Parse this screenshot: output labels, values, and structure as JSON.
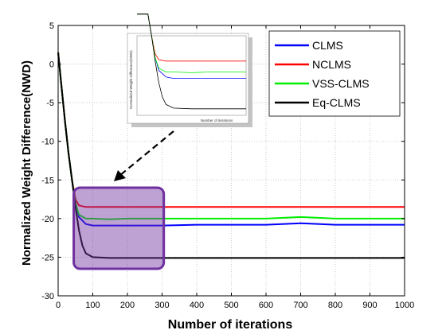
{
  "chart_data": {
    "type": "line",
    "xlabel": "Number of iterations",
    "ylabel": "Normalized Weight Difference(NWD)",
    "xlim": [
      0,
      1000
    ],
    "ylim": [
      -30,
      5
    ],
    "xticks": [
      0,
      100,
      200,
      300,
      400,
      500,
      600,
      700,
      800,
      900,
      1000
    ],
    "yticks": [
      5,
      0,
      -5,
      -10,
      -15,
      -20,
      -25,
      -30
    ],
    "grid": "dotted",
    "legend_placement": "top-right",
    "series": [
      {
        "name": "CLMS",
        "color": "#0000ff",
        "x": [
          0,
          10,
          20,
          30,
          40,
          50,
          60,
          80,
          100,
          150,
          200,
          300,
          400,
          500,
          600,
          700,
          800,
          900,
          1000
        ],
        "y": [
          1.5,
          -3,
          -7.5,
          -11.5,
          -15,
          -18,
          -19.8,
          -20.7,
          -20.9,
          -20.9,
          -20.9,
          -20.9,
          -20.8,
          -20.8,
          -20.8,
          -20.6,
          -20.8,
          -20.8,
          -20.8
        ]
      },
      {
        "name": "NCLMS",
        "color": "#ff0000",
        "x": [
          0,
          10,
          20,
          30,
          40,
          50,
          60,
          80,
          100,
          150,
          200,
          300,
          400,
          500,
          600,
          700,
          800,
          900,
          1000
        ],
        "y": [
          1.5,
          -3,
          -7.5,
          -11.5,
          -15,
          -17.5,
          -18.3,
          -18.5,
          -18.5,
          -18.5,
          -18.5,
          -18.5,
          -18.5,
          -18.5,
          -18.5,
          -18.5,
          -18.5,
          -18.5,
          -18.5
        ]
      },
      {
        "name": "VSS-CLMS",
        "color": "#00ee00",
        "x": [
          0,
          10,
          20,
          30,
          40,
          50,
          60,
          80,
          100,
          150,
          200,
          300,
          400,
          500,
          600,
          700,
          800,
          900,
          1000
        ],
        "y": [
          1.5,
          -3,
          -7.5,
          -11.5,
          -15,
          -18,
          -19.5,
          -20,
          -20,
          -20.1,
          -20,
          -20,
          -20,
          -20,
          -20,
          -19.8,
          -20,
          -20,
          -20
        ]
      },
      {
        "name": "Eq-CLMS",
        "color": "#000000",
        "x": [
          0,
          10,
          20,
          30,
          40,
          50,
          60,
          70,
          80,
          100,
          150,
          200,
          300,
          400,
          500,
          600,
          700,
          800,
          900,
          1000
        ],
        "y": [
          1.5,
          -3,
          -7.5,
          -11.5,
          -15,
          -18.5,
          -21.5,
          -23.5,
          -24.5,
          -25,
          -25.1,
          -25.1,
          -25.1,
          -25.1,
          -25.1,
          -25.1,
          -25.1,
          -25.1,
          -25.1,
          -25.1
        ]
      }
    ],
    "inset": {
      "xlabel": "Number of iterations",
      "ylabel": "Normalized Weight Difference(NWD)"
    },
    "highlight_box": {
      "x": [
        45,
        305
      ],
      "y": [
        -16,
        -26.5
      ],
      "color": "#7030a0"
    }
  }
}
